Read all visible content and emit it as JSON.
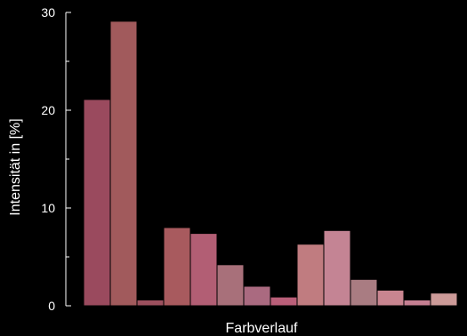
{
  "chart_data": {
    "type": "bar",
    "xlabel": "Farbverlauf",
    "ylabel": "Intensität in [%]",
    "ylim": [
      0,
      30
    ],
    "yticks": [
      0,
      10,
      20,
      30
    ],
    "grid": false,
    "values": [
      21.1,
      29.1,
      0.6,
      8.0,
      7.4,
      4.2,
      2.0,
      0.9,
      6.3,
      7.7,
      2.7,
      1.6,
      0.6,
      1.3
    ],
    "colors": [
      "#9a4a5e",
      "#a15a5c",
      "#9c505e",
      "#a85a5e",
      "#b25e74",
      "#a8707a",
      "#aa6a80",
      "#ba5f79",
      "#c07c80",
      "#c48494",
      "#a97c82",
      "#c98590",
      "#c57f92",
      "#cc9a98"
    ]
  }
}
